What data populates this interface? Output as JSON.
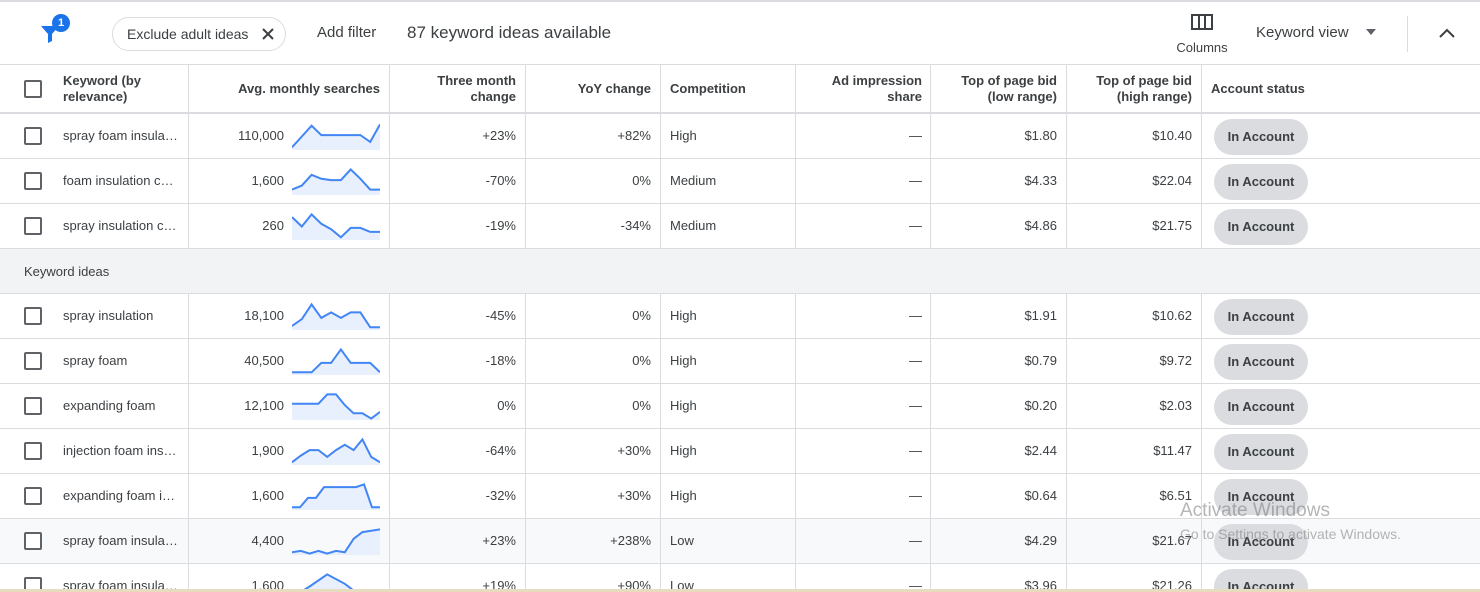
{
  "toolbar": {
    "filter_badge": "1",
    "chip_label": "Exclude adult ideas",
    "add_filter": "Add filter",
    "ideas_count": "87 keyword ideas available",
    "columns_label": "Columns",
    "keyword_view": "Keyword view"
  },
  "columns": {
    "keyword": "Keyword (by relevance)",
    "avg_searches": "Avg. monthly searches",
    "three_month": "Three month change",
    "yoy": "YoY change",
    "competition": "Competition",
    "ad_share": "Ad impression share",
    "bid_low": "Top of page bid (low range)",
    "bid_high": "Top of page bid (high range)",
    "account_status": "Account status"
  },
  "provided_rows": [
    {
      "keyword": "spray foam insula…",
      "searches": "110,000",
      "three_month": "+23%",
      "yoy": "+82%",
      "competition": "High",
      "ad_share": "—",
      "bid_low": "$1.80",
      "bid_high": "$10.40",
      "status": "In Account",
      "trend": [
        0.1,
        0.5,
        0.9,
        0.55,
        0.55,
        0.55,
        0.55,
        0.55,
        0.3,
        0.95
      ]
    },
    {
      "keyword": "foam insulation c…",
      "searches": "1,600",
      "three_month": "-70%",
      "yoy": "0%",
      "competition": "Medium",
      "ad_share": "—",
      "bid_low": "$4.33",
      "bid_high": "$22.04",
      "status": "In Account",
      "trend": [
        0.2,
        0.35,
        0.75,
        0.6,
        0.55,
        0.55,
        0.95,
        0.6,
        0.2,
        0.2
      ]
    },
    {
      "keyword": "spray insulation c…",
      "searches": "260",
      "three_month": "-19%",
      "yoy": "-34%",
      "competition": "Medium",
      "ad_share": "—",
      "bid_low": "$4.86",
      "bid_high": "$21.75",
      "status": "In Account",
      "trend": [
        0.85,
        0.5,
        0.95,
        0.6,
        0.4,
        0.1,
        0.45,
        0.45,
        0.3,
        0.3
      ]
    }
  ],
  "group_label": "Keyword ideas",
  "idea_rows": [
    {
      "keyword": "spray insulation",
      "searches": "18,100",
      "three_month": "-45%",
      "yoy": "0%",
      "competition": "High",
      "ad_share": "—",
      "bid_low": "$1.91",
      "bid_high": "$10.62",
      "status": "In Account",
      "trend": [
        0.15,
        0.4,
        0.95,
        0.45,
        0.65,
        0.45,
        0.65,
        0.65,
        0.1,
        0.1
      ]
    },
    {
      "keyword": "spray foam",
      "searches": "40,500",
      "three_month": "-18%",
      "yoy": "0%",
      "competition": "High",
      "ad_share": "—",
      "bid_low": "$0.79",
      "bid_high": "$9.72",
      "status": "In Account",
      "trend": [
        0.1,
        0.1,
        0.1,
        0.45,
        0.45,
        0.95,
        0.45,
        0.45,
        0.45,
        0.1
      ]
    },
    {
      "keyword": "expanding foam",
      "searches": "12,100",
      "three_month": "0%",
      "yoy": "0%",
      "competition": "High",
      "ad_share": "—",
      "bid_low": "$0.20",
      "bid_high": "$2.03",
      "status": "In Account",
      "trend": [
        0.6,
        0.6,
        0.6,
        0.6,
        0.95,
        0.95,
        0.55,
        0.25,
        0.25,
        0.05,
        0.3
      ]
    },
    {
      "keyword": "injection foam ins…",
      "searches": "1,900",
      "three_month": "-64%",
      "yoy": "+30%",
      "competition": "High",
      "ad_share": "—",
      "bid_low": "$2.44",
      "bid_high": "$11.47",
      "status": "In Account",
      "trend": [
        0.1,
        0.35,
        0.55,
        0.55,
        0.3,
        0.55,
        0.75,
        0.55,
        0.95,
        0.3,
        0.1
      ]
    },
    {
      "keyword": "expanding foam i…",
      "searches": "1,600",
      "three_month": "-32%",
      "yoy": "+30%",
      "competition": "High",
      "ad_share": "—",
      "bid_low": "$0.64",
      "bid_high": "$6.51",
      "status": "In Account",
      "trend": [
        0.1,
        0.1,
        0.45,
        0.45,
        0.85,
        0.85,
        0.85,
        0.85,
        0.85,
        0.95,
        0.1,
        0.1
      ]
    },
    {
      "keyword": "spray foam insula…",
      "searches": "4,400",
      "three_month": "+23%",
      "yoy": "+238%",
      "competition": "Low",
      "ad_share": "—",
      "bid_low": "$4.29",
      "bid_high": "$21.67",
      "status": "In Account",
      "trend": [
        0.1,
        0.15,
        0.05,
        0.15,
        0.05,
        0.15,
        0.1,
        0.6,
        0.85,
        0.9,
        0.95
      ]
    },
    {
      "keyword": "spray foam insula…",
      "searches": "1,600",
      "three_month": "+19%",
      "yoy": "+90%",
      "competition": "Low",
      "ad_share": "—",
      "bid_low": "$3.96",
      "bid_high": "$21.26",
      "status": "In Account",
      "trend": [
        0.1,
        0.5,
        0.95,
        0.6,
        0.1,
        0.1
      ]
    }
  ],
  "watermark": {
    "line1": "Activate Windows",
    "line2": "Go to Settings to activate Windows."
  },
  "colors": {
    "accent": "#1a73e8",
    "spark_line": "#4285f4",
    "spark_fill": "#e8f0fe",
    "pill_bg": "#dadce0"
  }
}
